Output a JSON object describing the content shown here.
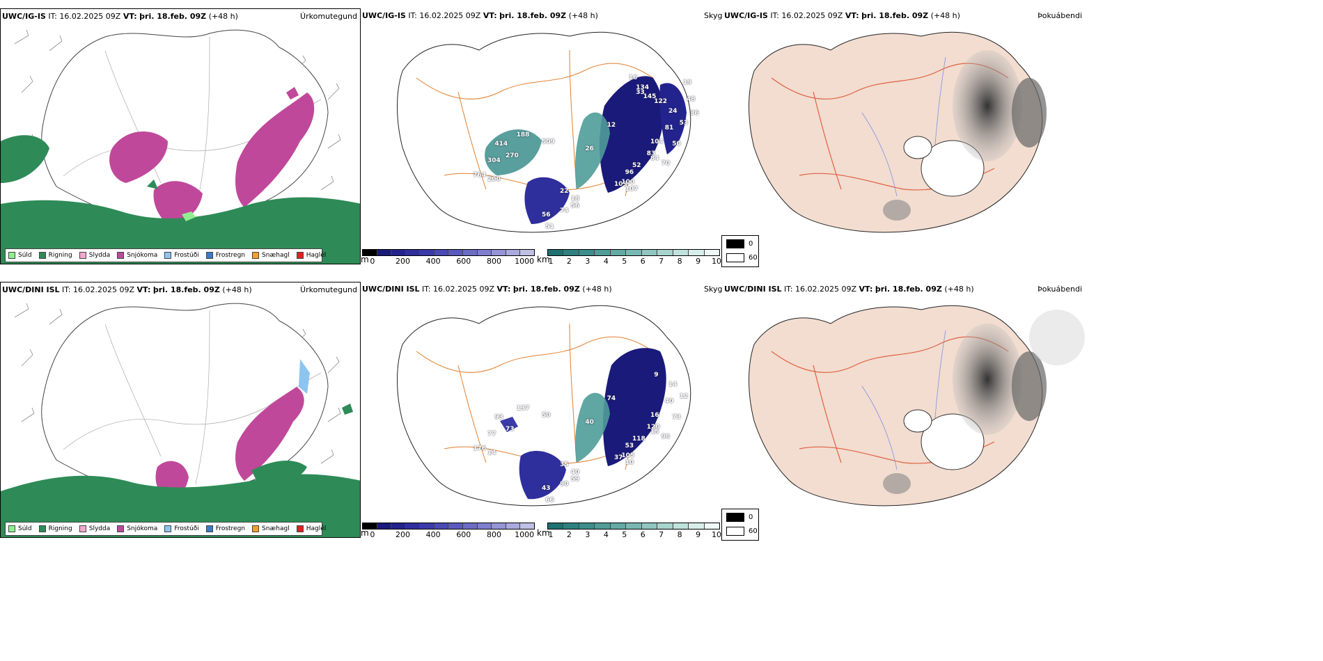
{
  "rows": [
    {
      "model": "UWC/IG-IS",
      "it_label": "IT:",
      "it_value": "16.02.2025 09Z",
      "vt_label": "VT:",
      "vt_value": "þri. 18.feb. 09Z",
      "lead": "(+48 h)",
      "labels": [
        "188",
        "414",
        "304",
        "270",
        "764",
        "200",
        "509",
        "12",
        "26",
        "56",
        "51",
        "74",
        "56",
        "22",
        "18",
        "109",
        "96",
        "100",
        "107",
        "52",
        "83",
        "84",
        "70",
        "104",
        "81",
        "50",
        "53",
        "24",
        "122",
        "145",
        "134",
        "16",
        "33",
        "48",
        "36",
        "19"
      ]
    },
    {
      "model": "UWC/DINI ISL",
      "it_label": "IT:",
      "it_value": "16.02.2025 09Z",
      "vt_label": "VT:",
      "vt_value": "þri. 18.feb. 09Z",
      "lead": "(+48 h)",
      "labels": [
        "137",
        "93",
        "77",
        "73",
        "176",
        "14",
        "50",
        "74",
        "40",
        "43",
        "66",
        "90",
        "59",
        "35",
        "40",
        "37",
        "53",
        "105",
        "10",
        "118",
        "120",
        "15",
        "96",
        "16",
        "40",
        "73",
        "12",
        "14",
        "9"
      ]
    }
  ],
  "panels": {
    "precip_type": {
      "name": "Úrkomutegund"
    },
    "visibility": {
      "name": "Skyggni"
    },
    "fog": {
      "name": "Þokuábendi"
    }
  },
  "precip_legend": [
    {
      "label": "Súld",
      "color": "#90ee90"
    },
    {
      "label": "Rigning",
      "color": "#2e8b57"
    },
    {
      "label": "Slydda",
      "color": "#f0a8d0"
    },
    {
      "label": "Snjókoma",
      "color": "#c0489a"
    },
    {
      "label": "Frostúði",
      "color": "#8ec5f0"
    },
    {
      "label": "Frostregn",
      "color": "#3a7ac8"
    },
    {
      "label": "Snæhagl",
      "color": "#f0a030"
    },
    {
      "label": "Haglél",
      "color": "#e02020"
    }
  ],
  "visibility_m_bar": {
    "unit": "m",
    "ticks": [
      "0",
      "200",
      "400",
      "600",
      "800",
      "1000"
    ],
    "colors": [
      "#000000",
      "#1a1a7a",
      "#23238e",
      "#2e2e9c",
      "#3a3aa8",
      "#4a4ab4",
      "#5a5abc",
      "#6c6cc4",
      "#7e7ece",
      "#9494d6",
      "#aaaade",
      "#c0c0e6"
    ]
  },
  "visibility_km_bar": {
    "unit": "km",
    "ticks": [
      "1",
      "2",
      "3",
      "4",
      "5",
      "6",
      "7",
      "8",
      "9",
      "10"
    ],
    "colors": [
      "#1f7070",
      "#2e8080",
      "#3c8e8c",
      "#4f9c98",
      "#63aaa4",
      "#79b8b2",
      "#90c6c0",
      "#a8d4ce",
      "#c0e2dc",
      "#d8eeea",
      "#eef8f6"
    ]
  },
  "fog_legend": [
    {
      "label": "0",
      "color": "#000000"
    },
    {
      "label": "60",
      "color": "#ffffff"
    }
  ]
}
